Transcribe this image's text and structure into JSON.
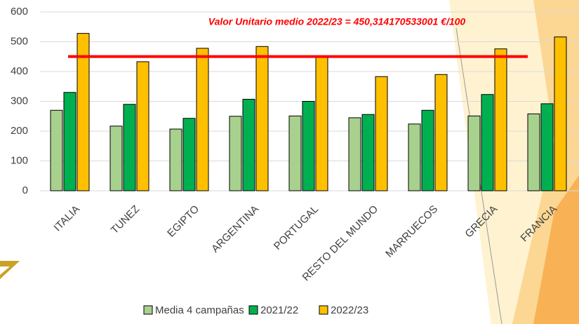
{
  "chart_data": {
    "type": "bar",
    "categories": [
      "ITALIA",
      "TUNEZ",
      "EGIPTO",
      "ARGENTINA",
      "PORTUGAL",
      "RESTO DEL MUNDO",
      "MARRUECOS",
      "GRECIA",
      "FRANCIA"
    ],
    "series": [
      {
        "name": "Media 4 campañas",
        "color": "#a9d18e",
        "values": [
          270,
          217,
          207,
          250,
          251,
          245,
          224,
          251,
          258
        ]
      },
      {
        "name": "2021/22",
        "color": "#00b050",
        "values": [
          330,
          290,
          243,
          307,
          300,
          256,
          270,
          323,
          292
        ]
      },
      {
        "name": "2022/23",
        "color": "#ffc000",
        "values": [
          528,
          433,
          478,
          484,
          450,
          383,
          390,
          476,
          516
        ]
      }
    ],
    "reference_line": {
      "value": 450.314170533001,
      "label": "Valor Unitario medio 2022/23 = 450,314170533001 €/100",
      "color": "#ff0000"
    },
    "ylim": [
      0,
      600
    ],
    "yticks": [
      0,
      100,
      200,
      300,
      400,
      500,
      600
    ],
    "grid": true
  }
}
